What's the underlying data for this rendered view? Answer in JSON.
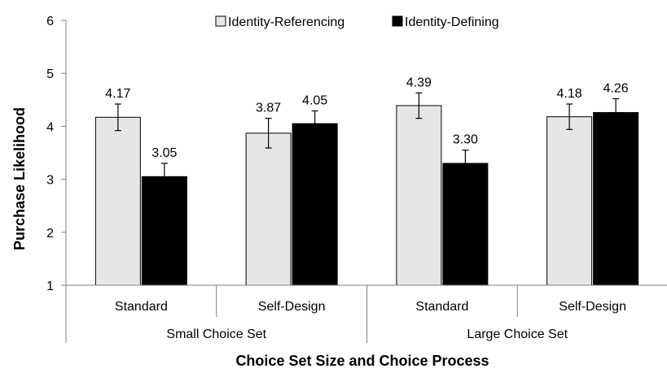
{
  "chart_data": {
    "type": "bar",
    "title": "",
    "xlabel": "Choice Set Size and Choice Process",
    "ylabel": "Purchase Likelihood",
    "ylim": [
      1,
      6
    ],
    "yticks": [
      "1",
      "2",
      "3",
      "4",
      "5",
      "6"
    ],
    "grid": false,
    "legend_position": "top",
    "categories": [
      "Standard",
      "Self-Design",
      "Standard",
      "Self-Design"
    ],
    "groups": [
      "Small Choice Set",
      "Large Choice Set"
    ],
    "series": [
      {
        "name": "Identity-Referencing",
        "color": "#e6e6e6",
        "values": [
          4.17,
          3.87,
          4.39,
          4.18
        ],
        "labels": [
          "4.17",
          "3.87",
          "4.39",
          "4.18"
        ],
        "error": [
          0.25,
          0.28,
          0.24,
          0.24
        ]
      },
      {
        "name": "Identity-Defining",
        "color": "#000000",
        "values": [
          3.05,
          4.05,
          3.3,
          4.26
        ],
        "labels": [
          "3.05",
          "4.05",
          "3.30",
          "4.26"
        ],
        "error": [
          0.25,
          0.24,
          0.25,
          0.26
        ]
      }
    ]
  }
}
